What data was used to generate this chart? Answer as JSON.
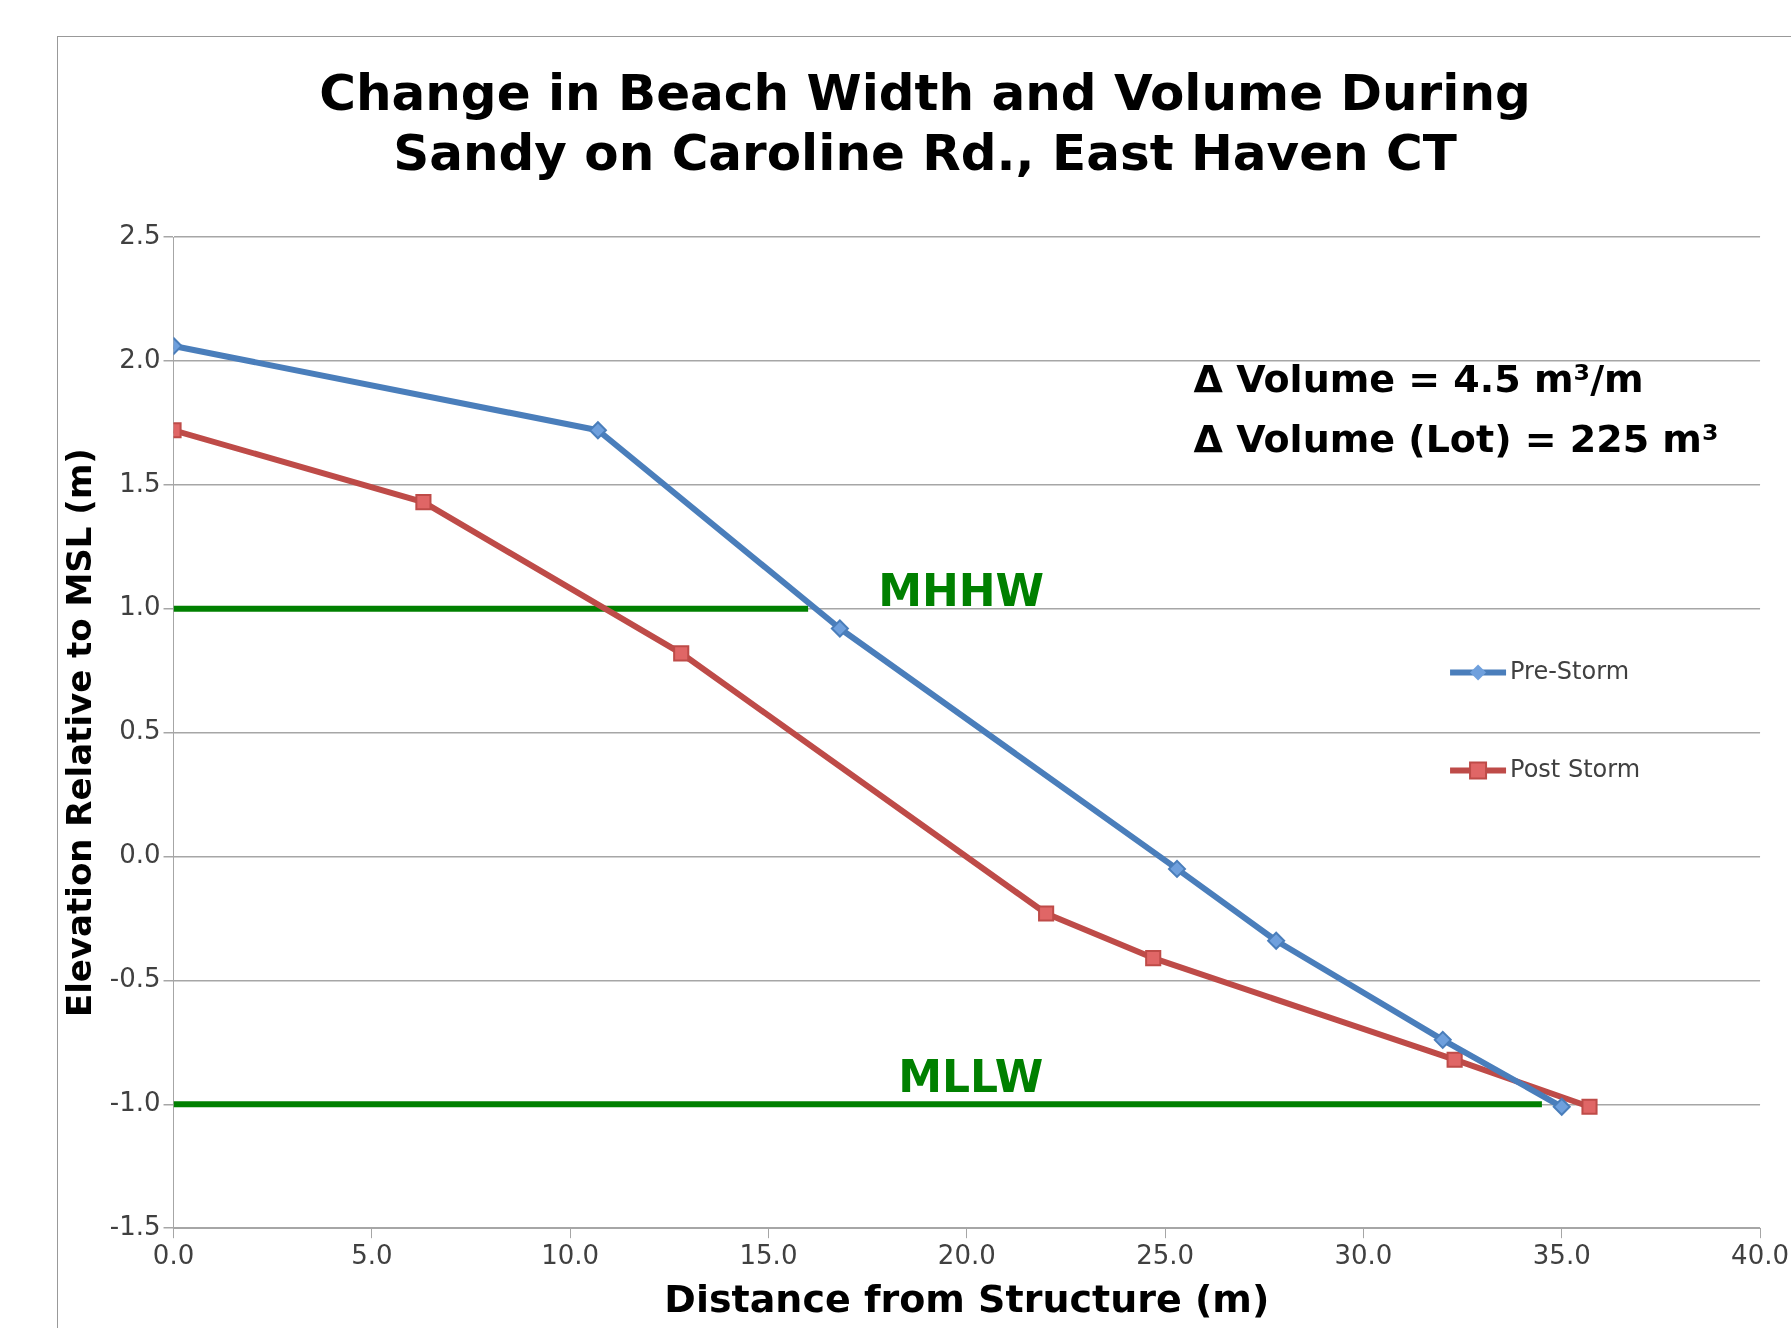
{
  "chart_data": {
    "type": "line",
    "title": "Change in Beach Width and Volume During Sandy on Caroline Rd., East Haven CT",
    "xlabel": "Distance from Structure (m)",
    "ylabel": "Elevation Relative to MSL (m)",
    "xlim": [
      0,
      40
    ],
    "xticks": [
      {
        "value": 0,
        "label": "0.0"
      },
      {
        "value": 5,
        "label": "5.0"
      },
      {
        "value": 10,
        "label": "10.0"
      },
      {
        "value": 15,
        "label": "15.0"
      },
      {
        "value": 20,
        "label": "20.0"
      },
      {
        "value": 25,
        "label": "25.0"
      },
      {
        "value": 30,
        "label": "30.0"
      },
      {
        "value": 35,
        "label": "35.0"
      },
      {
        "value": 40,
        "label": "40.0"
      }
    ],
    "ylim": [
      -1.5,
      2.5
    ],
    "yticks": [
      {
        "value": -1.5,
        "label": "-1.5"
      },
      {
        "value": -1,
        "label": "-1.0"
      },
      {
        "value": -0.5,
        "label": "-0.5"
      },
      {
        "value": 0,
        "label": "0.0"
      },
      {
        "value": 0.5,
        "label": "0.5"
      },
      {
        "value": 1,
        "label": "1.0"
      },
      {
        "value": 1.5,
        "label": "1.5"
      },
      {
        "value": 2,
        "label": "2.0"
      },
      {
        "value": 2.5,
        "label": "2.5"
      }
    ],
    "grid": "y",
    "legend": "right",
    "series": [
      {
        "name": "Pre-Storm",
        "color": "#4a7ebb",
        "marker": "diamond",
        "x": [
          0,
          10.7,
          16.8,
          25.3,
          27.8,
          32,
          35
        ],
        "values": [
          2.06,
          1.72,
          0.92,
          -0.05,
          -0.34,
          -0.74,
          -1.01
        ]
      },
      {
        "name": "Post Storm",
        "color": "#be4b48",
        "marker": "square",
        "x": [
          0,
          6.3,
          12.8,
          22,
          24.7,
          32.3,
          35.7
        ],
        "values": [
          1.72,
          1.43,
          0.82,
          -0.23,
          -0.41,
          -0.82,
          -1.01
        ]
      },
      {
        "color": "#008000",
        "marker": "none",
        "x": [
          0,
          16
        ],
        "values": [
          1,
          1
        ]
      },
      {
        "color": "#008000",
        "marker": "none",
        "x": [
          0,
          34.5
        ],
        "values": [
          -1,
          -1
        ]
      }
    ],
    "annotations": [
      {
        "text": "MHHW",
        "x": 16,
        "y": 1
      },
      {
        "text": "MLLW",
        "x": 20.1,
        "y": -1
      },
      "Δ Volume = 4.5 m³/m",
      "Δ Volume (Lot) = 225 m³"
    ]
  }
}
